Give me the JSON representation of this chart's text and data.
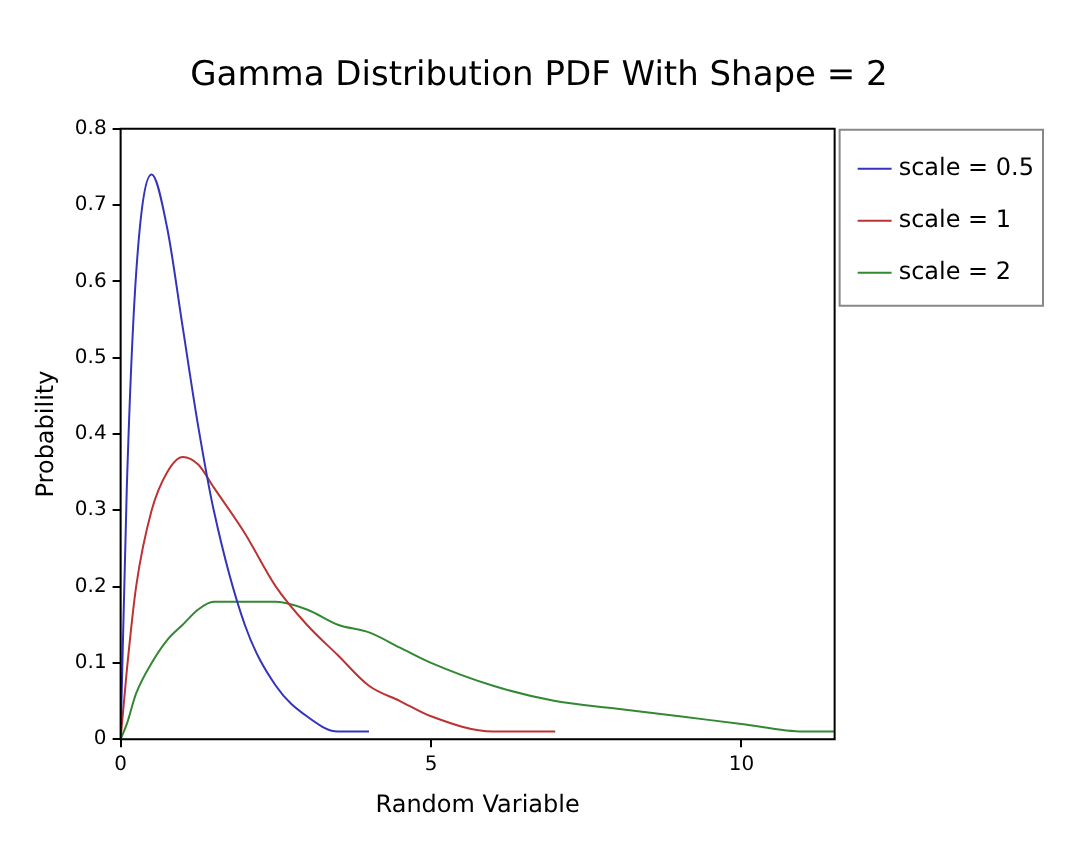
{
  "chart_data": {
    "type": "line",
    "title": "Gamma Distribution PDF With Shape = 2",
    "xlabel": "Random Variable",
    "ylabel": "Probability",
    "x": [
      0,
      0.1,
      0.25,
      0.5,
      0.75,
      1,
      1.25,
      1.5,
      2,
      2.5,
      3,
      3.5,
      4,
      4.5,
      5,
      6,
      7,
      8,
      9,
      10,
      11,
      11.5
    ],
    "series": [
      {
        "name": "scale = 0.5",
        "color": "#3333bb",
        "values": [
          0,
          0.33,
          0.61,
          0.74,
          0.67,
          0.54,
          0.41,
          0.3,
          0.15,
          0.07,
          0.03,
          0.01,
          0.01,
          null,
          null,
          null,
          null,
          null,
          null,
          null,
          null,
          null
        ]
      },
      {
        "name": "scale = 1",
        "color": "#bb3333",
        "values": [
          0,
          0.09,
          0.2,
          0.3,
          0.35,
          0.37,
          0.36,
          0.33,
          0.27,
          0.2,
          0.15,
          0.11,
          0.07,
          0.05,
          0.03,
          0.01,
          0.01,
          null,
          null,
          null,
          null,
          null
        ]
      },
      {
        "name": "scale = 2",
        "color": "#338833",
        "values": [
          0,
          0.02,
          0.06,
          0.1,
          0.13,
          0.15,
          0.17,
          0.18,
          0.18,
          0.18,
          0.17,
          0.15,
          0.14,
          0.12,
          0.1,
          0.07,
          0.05,
          0.04,
          0.03,
          0.02,
          0.01,
          0.01
        ]
      }
    ],
    "xlim": [
      0,
      11.5
    ],
    "xticks": [
      0,
      5,
      10
    ],
    "ylim": [
      0,
      0.8
    ],
    "yticks": [
      0,
      0.1,
      0.2,
      0.3,
      0.4,
      0.5,
      0.6,
      0.7,
      0.8
    ],
    "grid": false,
    "legend": "top right",
    "marker": "none",
    "line_style": "solid"
  }
}
